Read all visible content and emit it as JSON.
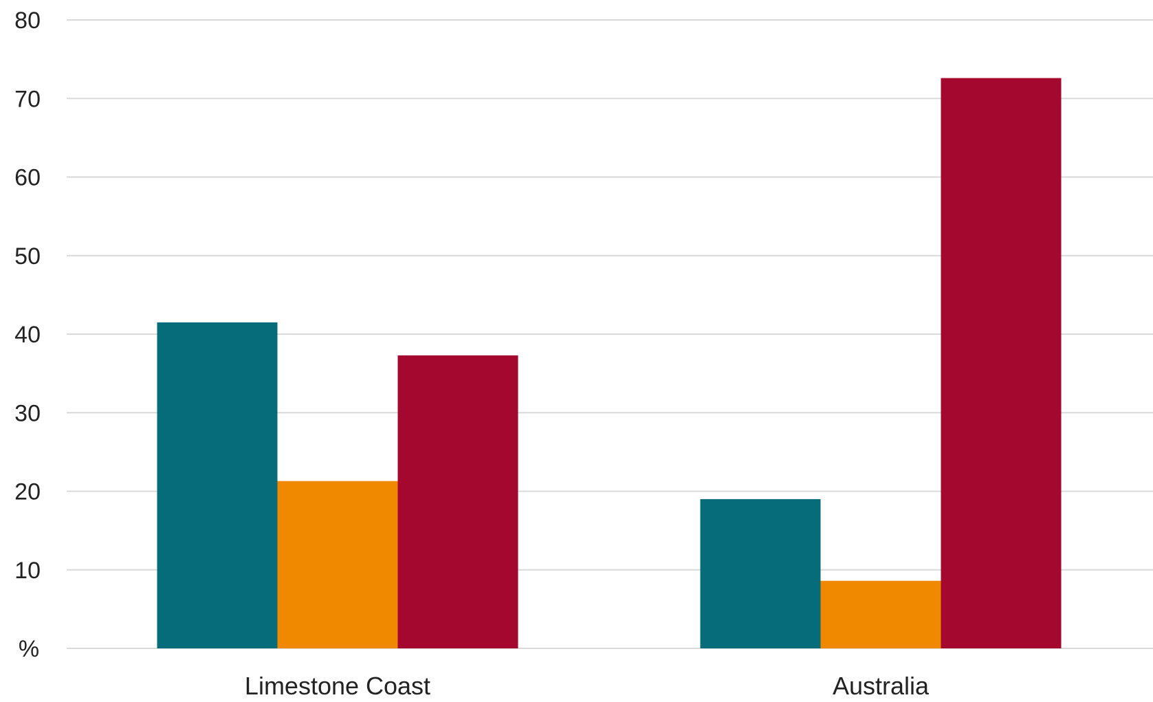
{
  "chart_data": {
    "type": "bar",
    "categories": [
      "Limestone Coast",
      "Australia"
    ],
    "series": [
      {
        "values": [
          41.5,
          19.0
        ],
        "color": "#066c7a"
      },
      {
        "values": [
          21.3,
          8.6
        ],
        "color": "#f08800"
      },
      {
        "values": [
          37.3,
          72.6
        ],
        "color": "#a5082f"
      }
    ],
    "ylim": [
      0,
      80
    ],
    "yticks": [
      10,
      20,
      30,
      40,
      50,
      60,
      70,
      80
    ],
    "ylabel": "%",
    "xlabel": "",
    "title": "",
    "grid": true,
    "legend": "none"
  }
}
